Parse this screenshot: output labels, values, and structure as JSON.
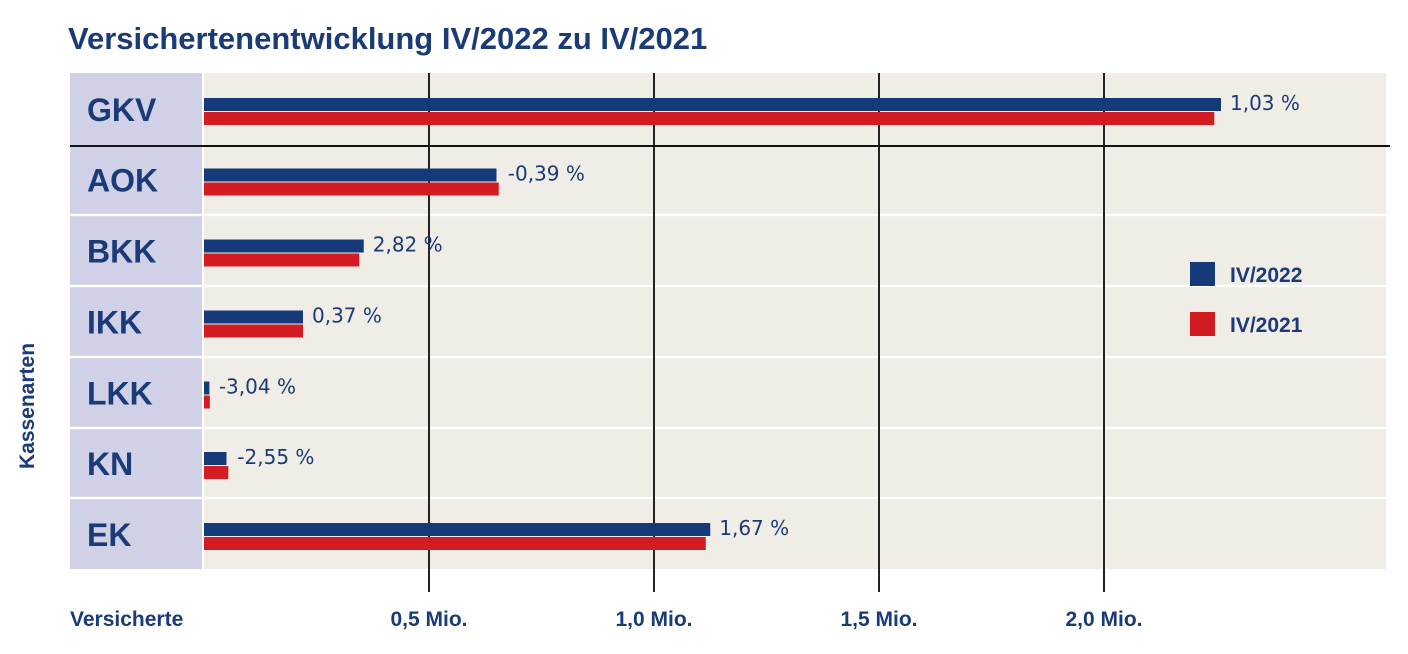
{
  "colors": {
    "series_2022": "#143a7a",
    "series_2021": "#d21c22",
    "text": "#1a3a78",
    "plot_bg": "#f0ede6",
    "label_bg": "#d0d0e6"
  },
  "chart_data": {
    "type": "bar",
    "orientation": "horizontal",
    "title": "Versichertenentwicklung IV/2022 zu IV/2021",
    "ylabel": "Kassenarten",
    "xlabel": "Versicherte",
    "categories": [
      "GKV",
      "AOK",
      "BKK",
      "IKK",
      "LKK",
      "KN",
      "EK"
    ],
    "series": [
      {
        "name": "IV/2022",
        "values": [
          2.26,
          0.65,
          0.355,
          0.22,
          0.012,
          0.05,
          1.125
        ]
      },
      {
        "name": "IV/2021",
        "values": [
          2.245,
          0.655,
          0.345,
          0.22,
          0.013,
          0.054,
          1.115
        ]
      }
    ],
    "change_labels": [
      "1,03 %",
      "-0,39 %",
      "2,82 %",
      "0,37 %",
      "-3,04 %",
      "-2,55 %",
      "1,67 %"
    ],
    "x_unit": "Mio.",
    "xlim": [
      0,
      2.62
    ],
    "xticks": [
      0.5,
      1.0,
      1.5,
      2.0
    ],
    "xtick_labels": [
      "0,5 Mio.",
      "1,0 Mio.",
      "1,5 Mio.",
      "2,0 Mio."
    ],
    "grid": "vertical",
    "legend": {
      "position": "right"
    }
  }
}
